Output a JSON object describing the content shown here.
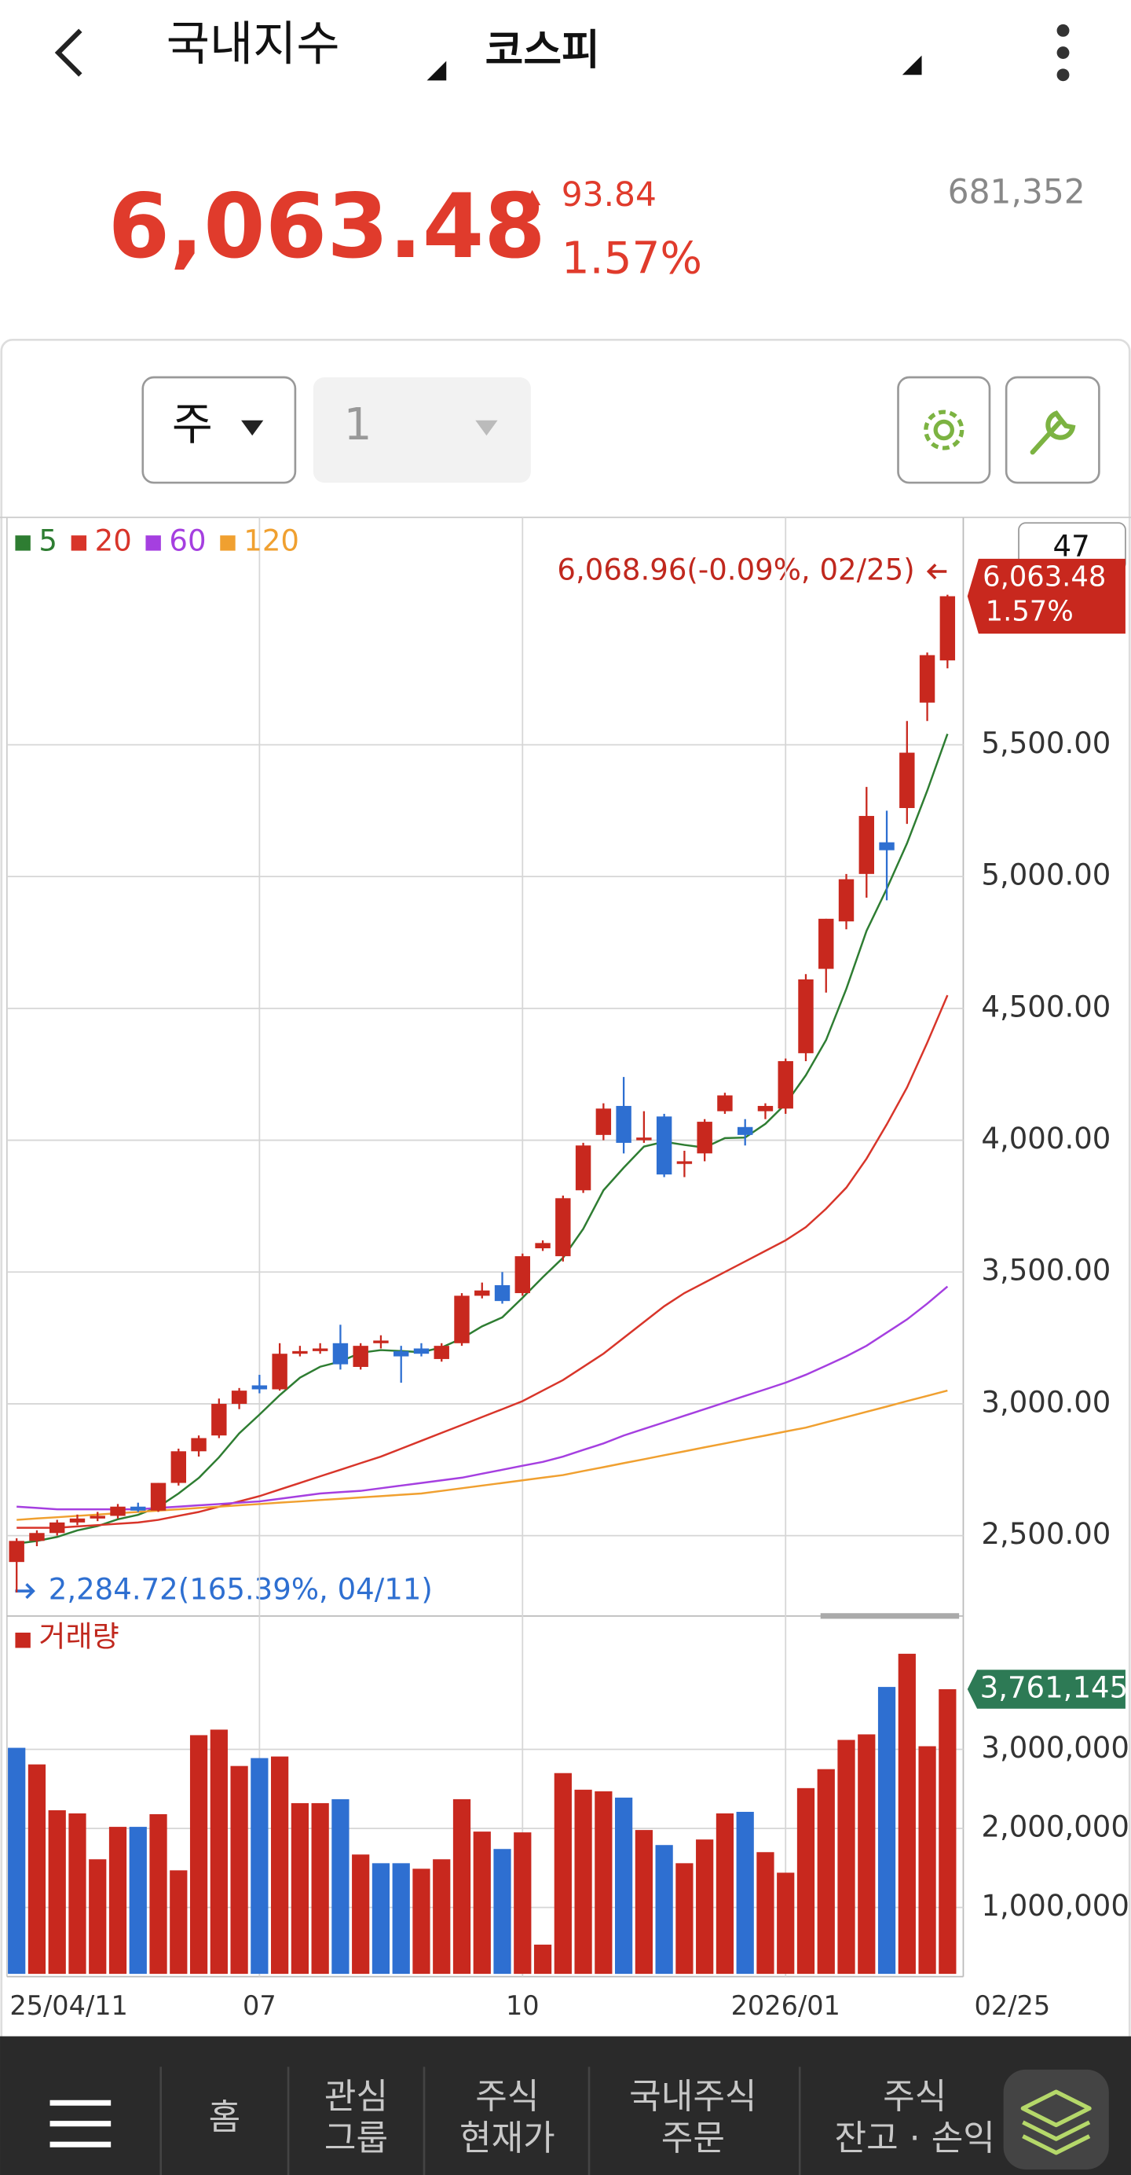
{
  "header": {
    "title": "국내지수",
    "subtitle": "코스피"
  },
  "quote": {
    "price": "6,063.48",
    "change": "93.84",
    "change_pct": "1.57%",
    "volume": "681,352"
  },
  "controls": {
    "period": "주",
    "count": "1"
  },
  "chart_data": [
    {
      "type": "candlestick",
      "up_color": "#c8281e",
      "down_color": "#2e6fd1",
      "count_label": "47",
      "max_label": "6,068.96(-0.09%, 02/25)",
      "min_label": "2,284.72(165.39%, 04/11)",
      "categories": [
        "25/04/11",
        null,
        null,
        null,
        null,
        null,
        null,
        null,
        null,
        null,
        null,
        null,
        "07",
        null,
        null,
        null,
        null,
        null,
        null,
        null,
        null,
        null,
        null,
        null,
        null,
        "10",
        null,
        null,
        null,
        null,
        null,
        null,
        null,
        null,
        null,
        null,
        null,
        null,
        "2026/01",
        null,
        null,
        null,
        null,
        null,
        null,
        null,
        "02/25"
      ],
      "open": [
        2400,
        2480,
        2510,
        2550,
        2565,
        2575,
        2610,
        2595,
        2700,
        2820,
        2880,
        3000,
        3070,
        3055,
        3190,
        3200,
        3230,
        3140,
        3230,
        3200,
        3210,
        3170,
        3230,
        3410,
        3450,
        3420,
        3590,
        3560,
        3810,
        4020,
        4130,
        4000,
        4090,
        3910,
        3950,
        4110,
        4050,
        4110,
        4120,
        4330,
        4650,
        4830,
        5010,
        5130,
        5260,
        5660,
        5820
      ],
      "high": [
        2490,
        2520,
        2560,
        2580,
        2590,
        2620,
        2625,
        2700,
        2830,
        2880,
        3020,
        3060,
        3110,
        3230,
        3220,
        3230,
        3300,
        3230,
        3260,
        3220,
        3230,
        3230,
        3420,
        3460,
        3500,
        3570,
        3620,
        3790,
        3990,
        4140,
        4240,
        4110,
        4100,
        3960,
        4080,
        4180,
        4080,
        4140,
        4310,
        4630,
        4840,
        5010,
        5340,
        5250,
        5590,
        5850,
        6068.96
      ],
      "low": [
        2284.72,
        2460,
        2500,
        2540,
        2555,
        2565,
        2590,
        2590,
        2690,
        2800,
        2870,
        2980,
        3040,
        3050,
        3180,
        3190,
        3130,
        3130,
        3210,
        3080,
        3180,
        3160,
        3220,
        3400,
        3380,
        3410,
        3580,
        3540,
        3800,
        4000,
        3950,
        3990,
        3860,
        3860,
        3920,
        4100,
        3980,
        4080,
        4100,
        4300,
        4560,
        4800,
        4920,
        4910,
        5200,
        5590,
        5790
      ],
      "close": [
        2480,
        2510,
        2550,
        2565,
        2575,
        2610,
        2595,
        2700,
        2820,
        2870,
        3000,
        3050,
        3055,
        3190,
        3200,
        3210,
        3150,
        3220,
        3240,
        3180,
        3190,
        3220,
        3410,
        3430,
        3390,
        3560,
        3610,
        3780,
        3980,
        4120,
        3990,
        4010,
        3870,
        3920,
        4070,
        4170,
        4020,
        4130,
        4300,
        4610,
        4840,
        4990,
        5230,
        5100,
        5470,
        5840,
        6063.48
      ],
      "lines": [
        {
          "name": "5",
          "color": "#2e7d32",
          "values": [
            2470,
            2480,
            2495,
            2520,
            2536,
            2562,
            2579,
            2609,
            2660,
            2719,
            2797,
            2888,
            2959,
            3033,
            3099,
            3141,
            3161,
            3194,
            3204,
            3200,
            3196,
            3214,
            3248,
            3294,
            3328,
            3402,
            3480,
            3554,
            3664,
            3810,
            3896,
            3976,
            3994,
            3982,
            3972,
            4008,
            4010,
            4062,
            4138,
            4246,
            4380,
            4574,
            4794,
            4954,
            5126,
            5326,
            5541
          ]
        },
        {
          "name": "20",
          "color": "#d8352a",
          "values": [
            2530,
            2530,
            2530,
            2535,
            2540,
            2545,
            2550,
            2560,
            2575,
            2590,
            2610,
            2630,
            2650,
            2675,
            2700,
            2725,
            2750,
            2775,
            2800,
            2830,
            2860,
            2890,
            2920,
            2950,
            2980,
            3010,
            3050,
            3090,
            3140,
            3190,
            3250,
            3310,
            3370,
            3420,
            3460,
            3500,
            3540,
            3580,
            3620,
            3670,
            3740,
            3820,
            3930,
            4060,
            4200,
            4370,
            4550
          ]
        },
        {
          "name": "60",
          "color": "#a53fe0",
          "values": [
            2610,
            2605,
            2600,
            2600,
            2600,
            2600,
            2600,
            2605,
            2610,
            2615,
            2620,
            2625,
            2630,
            2640,
            2650,
            2660,
            2665,
            2670,
            2680,
            2690,
            2700,
            2710,
            2720,
            2735,
            2750,
            2765,
            2780,
            2800,
            2825,
            2850,
            2880,
            2905,
            2930,
            2955,
            2980,
            3005,
            3030,
            3055,
            3080,
            3110,
            3145,
            3180,
            3220,
            3270,
            3320,
            3380,
            3445
          ]
        },
        {
          "name": "120",
          "color": "#f0a030",
          "values": [
            2560,
            2565,
            2570,
            2575,
            2580,
            2585,
            2590,
            2595,
            2600,
            2605,
            2610,
            2615,
            2620,
            2625,
            2630,
            2635,
            2640,
            2645,
            2650,
            2655,
            2660,
            2670,
            2680,
            2690,
            2700,
            2710,
            2720,
            2730,
            2745,
            2760,
            2775,
            2790,
            2805,
            2820,
            2835,
            2850,
            2865,
            2880,
            2895,
            2910,
            2930,
            2950,
            2970,
            2990,
            3010,
            3030,
            3050
          ]
        }
      ],
      "ylim": [
        2211,
        6352
      ],
      "yticks": [
        {
          "value": 2500,
          "label": "2,500.00"
        },
        {
          "value": 3000,
          "label": "3,000.00"
        },
        {
          "value": 3500,
          "label": "3,500.00"
        },
        {
          "value": 4000,
          "label": "4,000.00"
        },
        {
          "value": 4500,
          "label": "4,500.00"
        },
        {
          "value": 5000,
          "label": "5,000.00"
        },
        {
          "value": 5500,
          "label": "5,500.00"
        }
      ],
      "grid": true
    },
    {
      "type": "bar",
      "name": "거래량",
      "color": "#c8281e",
      "values": [
        3020000,
        2810000,
        2230000,
        2190000,
        1610000,
        2020000,
        2020000,
        2180000,
        1470000,
        3180000,
        3250000,
        2790000,
        2890000,
        2910000,
        2320000,
        2320000,
        2370000,
        1670000,
        1560000,
        1560000,
        1490000,
        1610000,
        2370000,
        1960000,
        1740000,
        1950000,
        530000,
        2700000,
        2490000,
        2470000,
        2390000,
        1980000,
        1790000,
        1560000,
        1860000,
        2190000,
        2210000,
        1700000,
        1440000,
        2510000,
        2750000,
        3120000,
        3190000,
        3790000,
        4210000,
        3040000,
        3761145
      ],
      "value_labels": [
        null,
        null,
        null,
        null,
        null,
        null,
        null,
        null,
        null,
        null,
        null,
        null,
        null,
        null,
        null,
        null,
        null,
        null,
        null,
        null,
        null,
        null,
        null,
        null,
        null,
        null,
        null,
        null,
        null,
        null,
        null,
        null,
        null,
        null,
        null,
        null,
        null,
        null,
        null,
        null,
        null,
        null,
        null,
        null,
        null,
        null,
        "3,761,145"
      ],
      "colors": [
        "#2e6fd1",
        "#c8281e",
        "#c8281e",
        "#c8281e",
        "#c8281e",
        "#c8281e",
        "#2e6fd1",
        "#c8281e",
        "#c8281e",
        "#c8281e",
        "#c8281e",
        "#c8281e",
        "#2e6fd1",
        "#c8281e",
        "#c8281e",
        "#c8281e",
        "#2e6fd1",
        "#c8281e",
        "#2e6fd1",
        "#2e6fd1",
        "#c8281e",
        "#c8281e",
        "#c8281e",
        "#c8281e",
        "#2e6fd1",
        "#c8281e",
        "#c8281e",
        "#c8281e",
        "#c8281e",
        "#c8281e",
        "#2e6fd1",
        "#c8281e",
        "#2e6fd1",
        "#c8281e",
        "#c8281e",
        "#c8281e",
        "#2e6fd1",
        "#c8281e",
        "#c8281e",
        "#c8281e",
        "#c8281e",
        "#c8281e",
        "#c8281e",
        "#2e6fd1",
        "#c8281e",
        "#c8281e",
        "#c8281e"
      ],
      "ylim": [
        160000,
        4600000
      ],
      "yticks": [
        {
          "value": 1000000,
          "label": "1,000,000"
        },
        {
          "value": 2000000,
          "label": "2,000,000"
        },
        {
          "value": 3000000,
          "label": "3,000,000"
        }
      ],
      "grid": true
    }
  ],
  "nav": [
    [
      "홈"
    ],
    [
      "관심",
      "그룹"
    ],
    [
      "주식",
      "현재가"
    ],
    [
      "국내주식",
      "주문"
    ],
    [
      "주식",
      "잔고 · 손익"
    ]
  ]
}
